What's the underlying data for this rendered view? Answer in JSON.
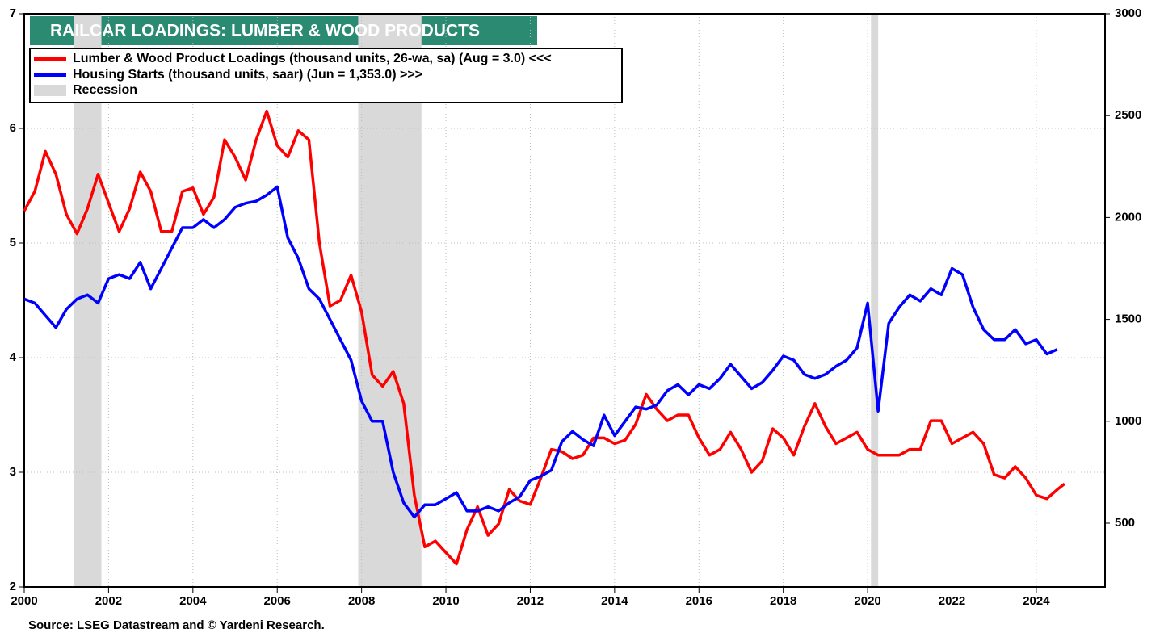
{
  "chart_data": {
    "type": "line",
    "title": "RAILCAR LOADINGS: LUMBER & WOOD PRODUCTS",
    "source": "Source: LSEG Datastream and © Yardeni Research.",
    "xlim": [
      2000,
      2025.63
    ],
    "xticks": [
      2000,
      2002,
      2004,
      2006,
      2008,
      2010,
      2012,
      2014,
      2016,
      2018,
      2020,
      2022,
      2024
    ],
    "ylim": [
      2,
      7
    ],
    "yticks": [
      2,
      3,
      4,
      5,
      6,
      7
    ],
    "y2lim": [
      187,
      3000
    ],
    "y2ticks": [
      500,
      1000,
      1500,
      2000,
      2500,
      3000
    ],
    "grid": true,
    "recession_label": "Recession",
    "recession_color": "#d9d9d9",
    "recessions": [
      [
        2001.17,
        2001.83
      ],
      [
        2007.92,
        2009.42
      ],
      [
        2020.08,
        2020.25
      ]
    ],
    "series": [
      {
        "name": "Lumber & Wood Product Loadings (thousand units, 26-wa, sa) (Aug = 3.0) <<<",
        "color": "#ff0000",
        "axis": "y",
        "x": [
          2000,
          2000.25,
          2000.5,
          2000.75,
          2001,
          2001.25,
          2001.5,
          2001.75,
          2002,
          2002.25,
          2002.5,
          2002.75,
          2003,
          2003.25,
          2003.5,
          2003.75,
          2004,
          2004.25,
          2004.5,
          2004.75,
          2005,
          2005.25,
          2005.5,
          2005.75,
          2006,
          2006.25,
          2006.5,
          2006.75,
          2007,
          2007.25,
          2007.5,
          2007.75,
          2008,
          2008.25,
          2008.5,
          2008.75,
          2009,
          2009.25,
          2009.5,
          2009.75,
          2010,
          2010.25,
          2010.5,
          2010.75,
          2011,
          2011.25,
          2011.5,
          2011.75,
          2012,
          2012.25,
          2012.5,
          2012.75,
          2013,
          2013.25,
          2013.5,
          2013.75,
          2014,
          2014.25,
          2014.5,
          2014.75,
          2015,
          2015.25,
          2015.5,
          2015.75,
          2016,
          2016.25,
          2016.5,
          2016.75,
          2017,
          2017.25,
          2017.5,
          2017.75,
          2018,
          2018.25,
          2018.5,
          2018.75,
          2019,
          2019.25,
          2019.5,
          2019.75,
          2020,
          2020.25,
          2020.5,
          2020.75,
          2021,
          2021.25,
          2021.5,
          2021.75,
          2022,
          2022.25,
          2022.5,
          2022.75,
          2023,
          2023.25,
          2023.5,
          2023.75,
          2024,
          2024.25,
          2024.5,
          2024.67
        ],
        "values": [
          5.28,
          5.45,
          5.8,
          5.6,
          5.25,
          5.08,
          5.3,
          5.6,
          5.35,
          5.1,
          5.3,
          5.62,
          5.45,
          5.1,
          5.1,
          5.45,
          5.48,
          5.25,
          5.4,
          5.9,
          5.75,
          5.55,
          5.9,
          6.15,
          5.85,
          5.75,
          5.98,
          5.9,
          5.0,
          4.45,
          4.5,
          4.72,
          4.4,
          3.85,
          3.75,
          3.88,
          3.6,
          2.8,
          2.35,
          2.4,
          2.3,
          2.2,
          2.5,
          2.7,
          2.45,
          2.55,
          2.85,
          2.75,
          2.72,
          2.95,
          3.2,
          3.18,
          3.12,
          3.15,
          3.3,
          3.3,
          3.25,
          3.28,
          3.42,
          3.68,
          3.55,
          3.45,
          3.5,
          3.5,
          3.3,
          3.15,
          3.2,
          3.35,
          3.2,
          3.0,
          3.1,
          3.38,
          3.3,
          3.15,
          3.4,
          3.6,
          3.4,
          3.25,
          3.3,
          3.35,
          3.2,
          3.15,
          3.15,
          3.15,
          3.2,
          3.2,
          3.45,
          3.45,
          3.25,
          3.3,
          3.35,
          3.25,
          2.98,
          2.95,
          3.05,
          2.95,
          2.8,
          2.77,
          2.85,
          2.9
        ]
      },
      {
        "name": "Housing Starts (thousand units, saar)  (Jun = 1,353.0) >>>",
        "color": "#0000ff",
        "axis": "y2",
        "x": [
          2000,
          2000.25,
          2000.5,
          2000.75,
          2001,
          2001.25,
          2001.5,
          2001.75,
          2002,
          2002.25,
          2002.5,
          2002.75,
          2003,
          2003.25,
          2003.5,
          2003.75,
          2004,
          2004.25,
          2004.5,
          2004.75,
          2005,
          2005.25,
          2005.5,
          2005.75,
          2006,
          2006.25,
          2006.5,
          2006.75,
          2007,
          2007.25,
          2007.5,
          2007.75,
          2008,
          2008.25,
          2008.5,
          2008.75,
          2009,
          2009.25,
          2009.5,
          2009.75,
          2010,
          2010.25,
          2010.5,
          2010.75,
          2011,
          2011.25,
          2011.5,
          2011.75,
          2012,
          2012.25,
          2012.5,
          2012.75,
          2013,
          2013.25,
          2013.5,
          2013.75,
          2014,
          2014.25,
          2014.5,
          2014.75,
          2015,
          2015.25,
          2015.5,
          2015.75,
          2016,
          2016.25,
          2016.5,
          2016.75,
          2017,
          2017.25,
          2017.5,
          2017.75,
          2018,
          2018.25,
          2018.5,
          2018.75,
          2019,
          2019.25,
          2019.5,
          2019.75,
          2020,
          2020.25,
          2020.5,
          2020.75,
          2021,
          2021.25,
          2021.5,
          2021.75,
          2022,
          2022.25,
          2022.5,
          2022.75,
          2023,
          2023.25,
          2023.5,
          2023.75,
          2024,
          2024.25,
          2024.5
        ],
        "values": [
          1600,
          1580,
          1520,
          1460,
          1550,
          1600,
          1620,
          1580,
          1700,
          1720,
          1700,
          1780,
          1650,
          1750,
          1850,
          1950,
          1950,
          1990,
          1950,
          1990,
          2050,
          2070,
          2080,
          2110,
          2150,
          1900,
          1800,
          1650,
          1600,
          1500,
          1400,
          1300,
          1100,
          1000,
          1000,
          750,
          600,
          530,
          590,
          590,
          620,
          650,
          560,
          560,
          580,
          560,
          600,
          630,
          710,
          730,
          760,
          900,
          950,
          910,
          880,
          1030,
          930,
          1000,
          1070,
          1060,
          1080,
          1150,
          1180,
          1130,
          1180,
          1160,
          1210,
          1280,
          1220,
          1160,
          1190,
          1250,
          1320,
          1300,
          1230,
          1210,
          1230,
          1270,
          1300,
          1360,
          1580,
          1050,
          1480,
          1560,
          1620,
          1590,
          1650,
          1620,
          1750,
          1720,
          1560,
          1450,
          1400,
          1400,
          1450,
          1380,
          1400,
          1330,
          1353
        ]
      }
    ]
  }
}
